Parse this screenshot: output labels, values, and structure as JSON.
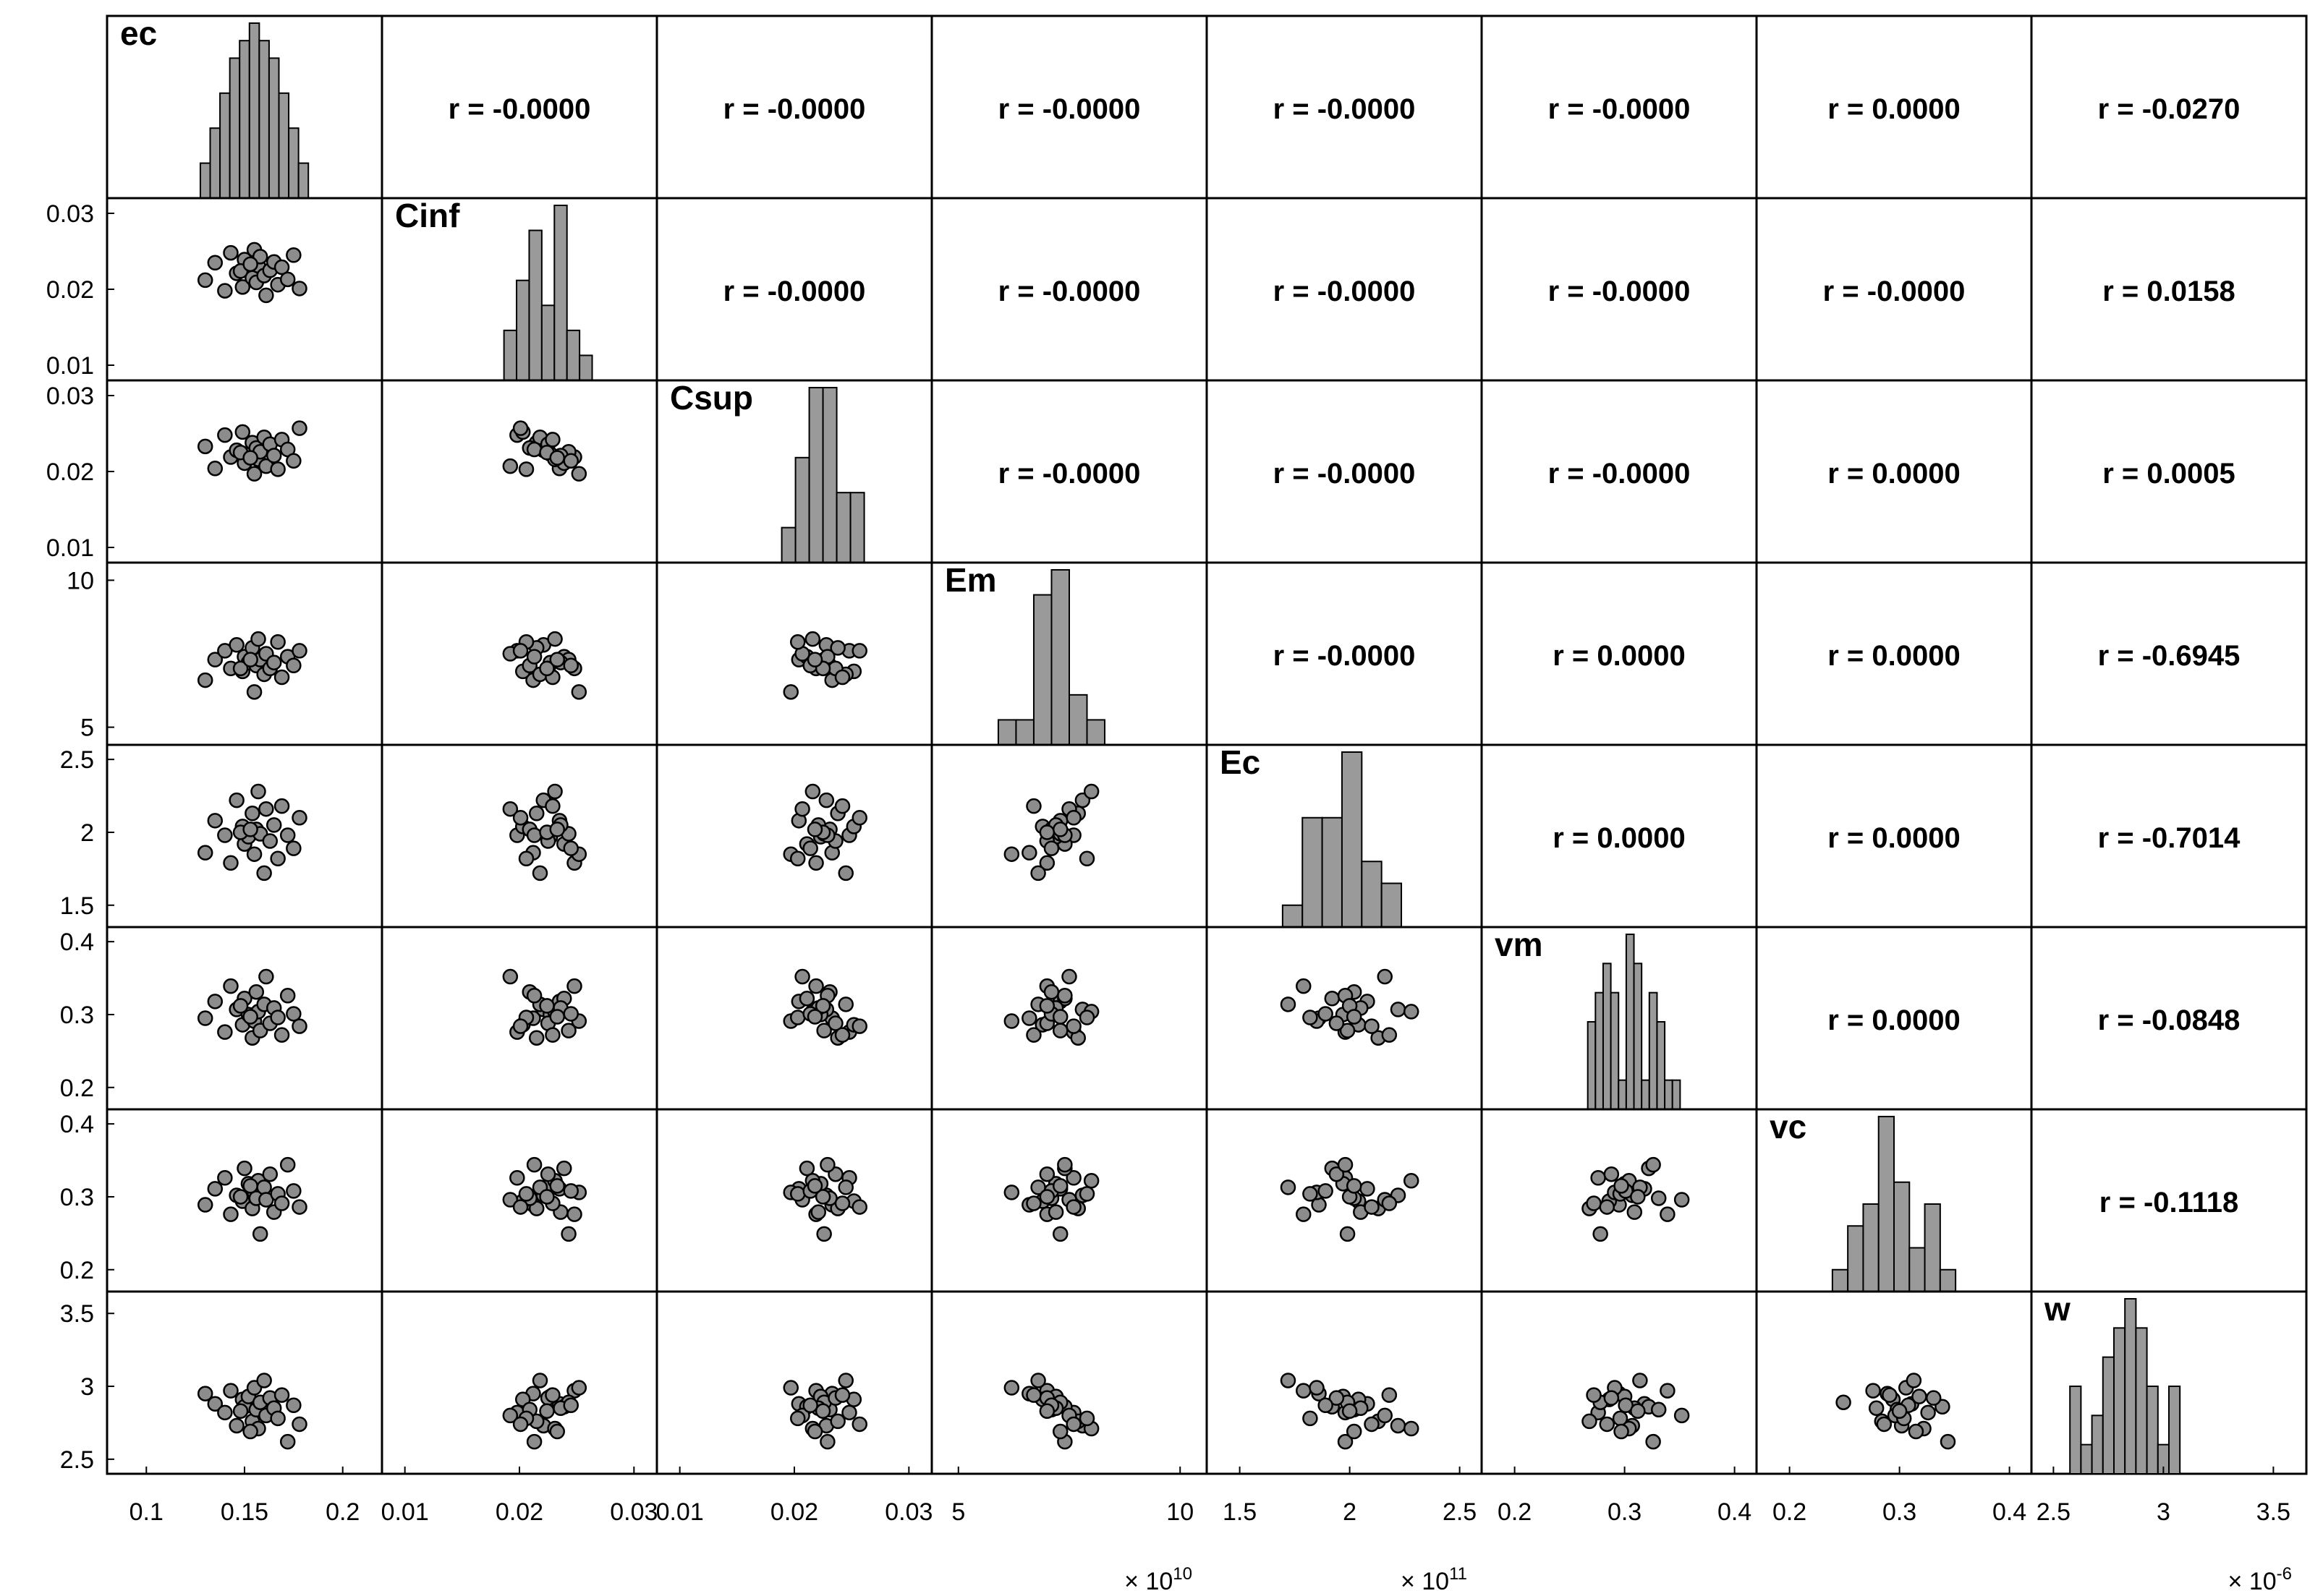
{
  "chart_data": {
    "type": "scatter-matrix",
    "variables": [
      "ec",
      "Cinf",
      "Csup",
      "Em",
      "Ec",
      "vm",
      "vc",
      "w"
    ],
    "correlations": [
      [
        "",
        "r = -0.0000",
        "r = -0.0000",
        "r = -0.0000",
        "r = -0.0000",
        "r = -0.0000",
        "r = 0.0000",
        "r = -0.0270"
      ],
      [
        "",
        "",
        "r = -0.0000",
        "r = -0.0000",
        "r = -0.0000",
        "r = -0.0000",
        "r = -0.0000",
        "r = 0.0158"
      ],
      [
        "",
        "",
        "",
        "r = -0.0000",
        "r = -0.0000",
        "r = -0.0000",
        "r = 0.0000",
        "r = 0.0005"
      ],
      [
        "",
        "",
        "",
        "",
        "r = -0.0000",
        "r = 0.0000",
        "r = 0.0000",
        "r = -0.6945"
      ],
      [
        "",
        "",
        "",
        "",
        "",
        "r = 0.0000",
        "r = 0.0000",
        "r = -0.7014"
      ],
      [
        "",
        "",
        "",
        "",
        "",
        "",
        "r = 0.0000",
        "r = -0.0848"
      ],
      [
        "",
        "",
        "",
        "",
        "",
        "",
        "",
        "r = -0.1118"
      ],
      [
        "",
        "",
        "",
        "",
        "",
        "",
        "",
        ""
      ]
    ],
    "axes": [
      {
        "name": "ec",
        "range": [
          0.08,
          0.22
        ],
        "ticks": [
          0.1,
          0.15,
          0.2
        ],
        "tick_labels": [
          "0.1",
          "0.15",
          "0.2"
        ],
        "multiplier": ""
      },
      {
        "name": "Cinf",
        "range": [
          0.008,
          0.032
        ],
        "ticks": [
          0.01,
          0.02,
          0.03
        ],
        "tick_labels": [
          "0.01",
          "0.02",
          "0.03"
        ],
        "multiplier": ""
      },
      {
        "name": "Csup",
        "range": [
          0.008,
          0.032
        ],
        "ticks": [
          0.01,
          0.02,
          0.03
        ],
        "tick_labels": [
          "0.01",
          "0.02",
          "0.03"
        ],
        "multiplier": ""
      },
      {
        "name": "Em",
        "range": [
          4.4,
          10.6
        ],
        "ticks": [
          5,
          10
        ],
        "tick_labels": [
          "5",
          "10"
        ],
        "multiplier": "× 10^10"
      },
      {
        "name": "Ec",
        "range": [
          1.35,
          2.6
        ],
        "ticks": [
          1.5,
          2,
          2.5
        ],
        "tick_labels": [
          "1.5",
          "2",
          "2.5"
        ],
        "multiplier": "× 10^11"
      },
      {
        "name": "vm",
        "range": [
          0.17,
          0.42
        ],
        "ticks": [
          0.2,
          0.3,
          0.4
        ],
        "tick_labels": [
          "0.2",
          "0.3",
          "0.4"
        ],
        "multiplier": ""
      },
      {
        "name": "vc",
        "range": [
          0.17,
          0.42
        ],
        "ticks": [
          0.2,
          0.3,
          0.4
        ],
        "tick_labels": [
          "0.2",
          "0.3",
          "0.4"
        ],
        "multiplier": ""
      },
      {
        "name": "w",
        "range": [
          2.4,
          3.65
        ],
        "ticks": [
          2.5,
          3,
          3.5
        ],
        "tick_labels": [
          "2.5",
          "3",
          "3.5"
        ],
        "multiplier": "× 10^-6"
      }
    ],
    "histograms": [
      {
        "name": "ec",
        "bins": [
          0.13,
          0.135,
          0.14,
          0.145,
          0.15,
          0.155,
          0.16,
          0.165,
          0.17,
          0.175,
          0.18
        ],
        "counts": [
          2,
          4,
          6,
          8,
          9,
          10,
          9,
          8,
          6,
          4,
          2
        ]
      },
      {
        "name": "Cinf",
        "bins": [
          0.0192,
          0.0203,
          0.0214,
          0.0225,
          0.0236,
          0.0247,
          0.0258
        ],
        "counts": [
          2,
          4,
          6,
          3,
          7,
          2,
          1
        ]
      },
      {
        "name": "Csup",
        "bins": [
          0.0195,
          0.0207,
          0.0219,
          0.0231,
          0.0243,
          0.0255
        ],
        "counts": [
          1,
          3,
          5,
          5,
          2,
          2
        ]
      },
      {
        "name": "Em",
        "bins": [
          6.1,
          6.5,
          6.9,
          7.3,
          7.7,
          8.1
        ],
        "counts": [
          1,
          1,
          6,
          7,
          2,
          1
        ]
      },
      {
        "name": "Ec",
        "bins": [
          1.74,
          1.83,
          1.92,
          2.01,
          2.1,
          2.19
        ],
        "counts": [
          1,
          5,
          5,
          8,
          3,
          2
        ]
      },
      {
        "name": "vm",
        "bins": [
          0.27,
          0.277,
          0.284,
          0.291,
          0.298,
          0.305,
          0.312,
          0.319,
          0.326,
          0.333,
          0.34,
          0.347
        ],
        "counts": [
          3,
          4,
          5,
          4,
          1,
          6,
          5,
          1,
          4,
          3,
          1,
          1
        ]
      },
      {
        "name": "vc",
        "bins": [
          0.246,
          0.26,
          0.274,
          0.288,
          0.302,
          0.316,
          0.33,
          0.344
        ],
        "counts": [
          1,
          3,
          4,
          8,
          5,
          2,
          4,
          1
        ]
      },
      {
        "name": "w",
        "bins": [
          2.6,
          2.65,
          2.7,
          2.75,
          2.8,
          2.85,
          2.9,
          2.95,
          3.0,
          3.05
        ],
        "counts": [
          3,
          1,
          2,
          4,
          5,
          6,
          5,
          3,
          1,
          3
        ]
      }
    ],
    "samples": {
      "ec": [
        0.13,
        0.135,
        0.14,
        0.143,
        0.146,
        0.149,
        0.15,
        0.152,
        0.154,
        0.155,
        0.156,
        0.157,
        0.158,
        0.16,
        0.161,
        0.163,
        0.165,
        0.167,
        0.169,
        0.172,
        0.175,
        0.178,
        0.148,
        0.153
      ],
      "Cinf": [
        0.0212,
        0.0235,
        0.0198,
        0.0248,
        0.0221,
        0.0203,
        0.0239,
        0.0227,
        0.0215,
        0.0252,
        0.0209,
        0.0231,
        0.0243,
        0.0218,
        0.0192,
        0.0225,
        0.0236,
        0.0206,
        0.0229,
        0.0213,
        0.0245,
        0.0201,
        0.0224,
        0.0233
      ],
      "Csup": [
        0.0233,
        0.0204,
        0.0248,
        0.0219,
        0.0228,
        0.0252,
        0.0211,
        0.0223,
        0.0238,
        0.0197,
        0.0231,
        0.0216,
        0.0226,
        0.0245,
        0.0207,
        0.0236,
        0.0221,
        0.0203,
        0.0242,
        0.0229,
        0.0214,
        0.0257,
        0.0225,
        0.0218
      ],
      "Em": [
        6.6,
        7.3,
        7.6,
        7.0,
        7.8,
        6.9,
        7.4,
        7.2,
        7.7,
        6.2,
        7.1,
        8.0,
        7.3,
        6.8,
        7.5,
        7.0,
        7.2,
        7.9,
        6.7,
        7.4,
        7.1,
        7.6,
        7.0,
        7.3
      ],
      "Ec": [
        1.86,
        2.08,
        1.98,
        1.79,
        2.22,
        2.04,
        1.92,
        1.97,
        2.13,
        1.85,
        2.02,
        2.28,
        1.99,
        1.72,
        2.16,
        1.94,
        2.05,
        1.82,
        2.18,
        1.98,
        1.89,
        2.1,
        2.0,
        2.02
      ],
      "vm": [
        0.295,
        0.318,
        0.276,
        0.339,
        0.307,
        0.286,
        0.322,
        0.3,
        0.268,
        0.291,
        0.331,
        0.304,
        0.278,
        0.314,
        0.352,
        0.288,
        0.309,
        0.296,
        0.272,
        0.326,
        0.301,
        0.284,
        0.312,
        0.297
      ],
      "vc": [
        0.289,
        0.311,
        0.326,
        0.276,
        0.302,
        0.294,
        0.339,
        0.318,
        0.284,
        0.306,
        0.298,
        0.322,
        0.249,
        0.313,
        0.296,
        0.331,
        0.279,
        0.304,
        0.291,
        0.344,
        0.308,
        0.286,
        0.3,
        0.315
      ],
      "w": [
        2.95,
        2.88,
        2.82,
        2.97,
        2.73,
        2.91,
        2.86,
        2.93,
        2.76,
        2.99,
        2.84,
        2.71,
        2.89,
        3.04,
        2.8,
        2.92,
        2.85,
        2.78,
        2.94,
        2.62,
        2.87,
        2.74,
        2.83,
        2.69
      ]
    }
  }
}
